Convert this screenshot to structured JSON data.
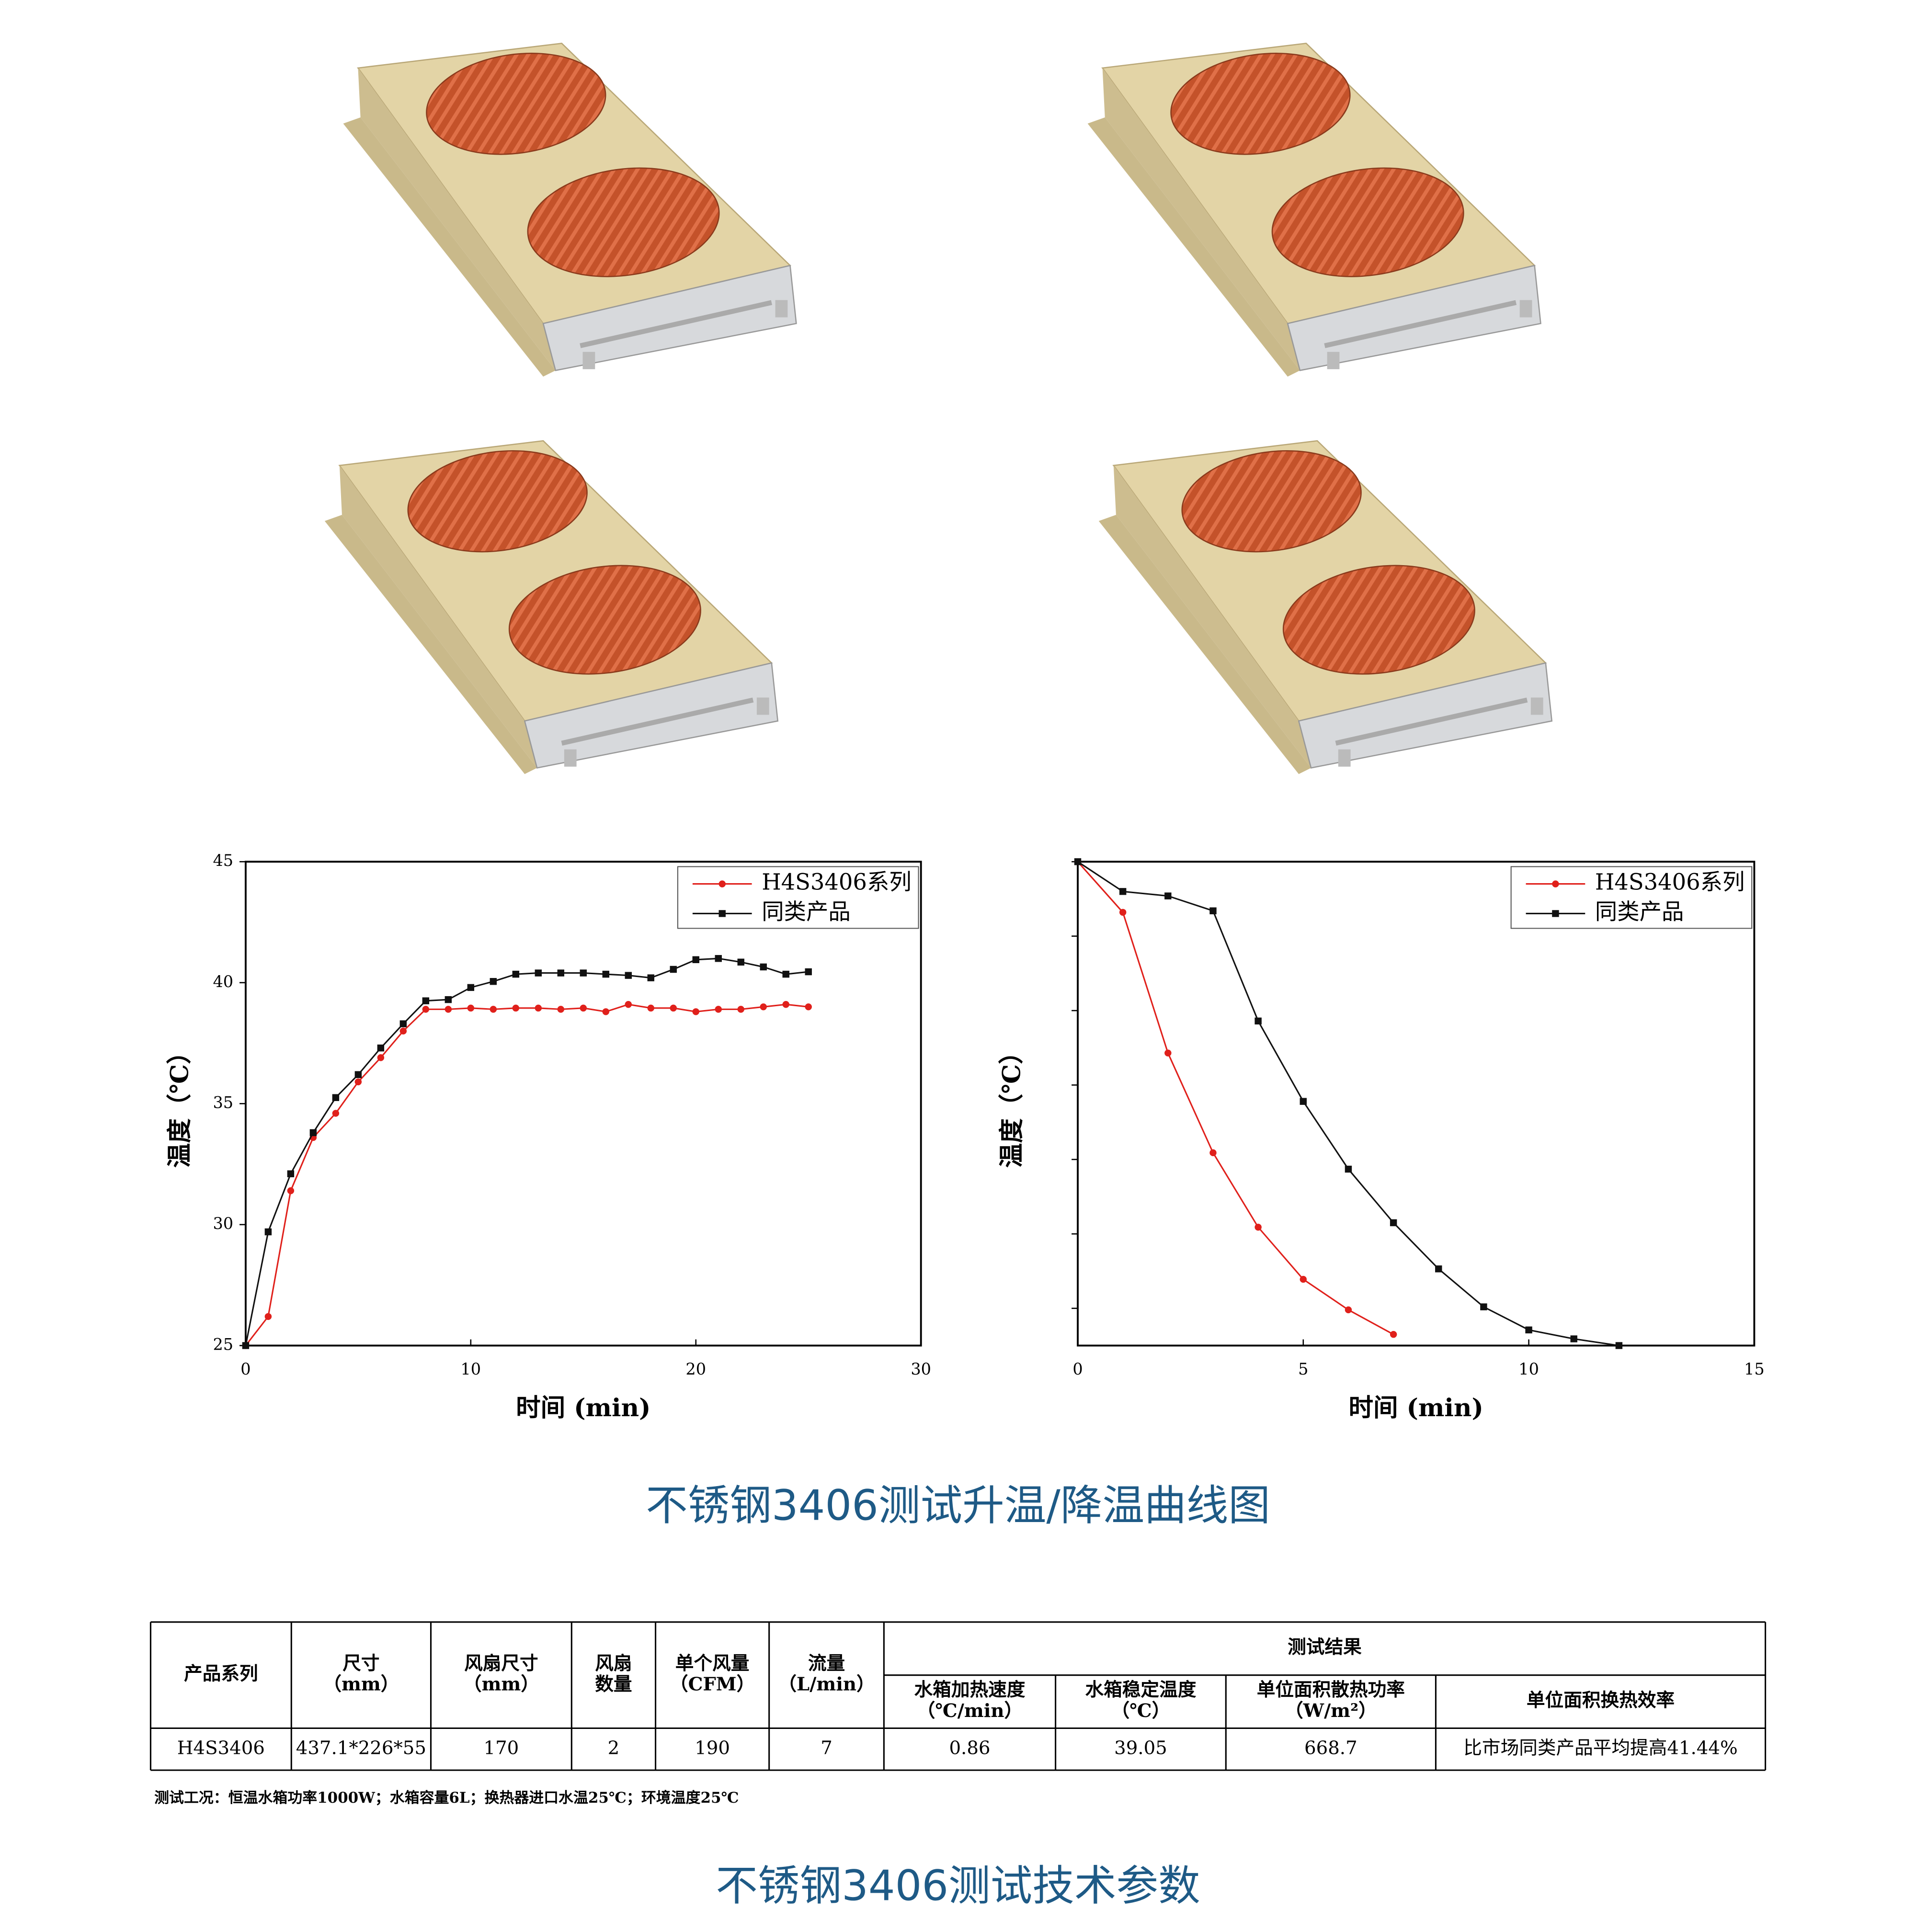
{
  "chart_data": [
    {
      "type": "line",
      "xlabel": "时间 (min)",
      "ylabel": "温度（℃）",
      "x": [
        0,
        1,
        2,
        3,
        4,
        5,
        6,
        7,
        8,
        9,
        10,
        11,
        12,
        13,
        14,
        15,
        16,
        17,
        18,
        19,
        20,
        21,
        22,
        23,
        24,
        25
      ],
      "series": [
        {
          "name": "H4S3406系列",
          "color": "#e0201b",
          "marker": "circle",
          "values": [
            25,
            26.2,
            31.4,
            33.6,
            34.6,
            35.9,
            36.9,
            38.0,
            38.9,
            38.9,
            38.95,
            38.9,
            38.95,
            38.95,
            38.9,
            38.95,
            38.8,
            39.1,
            38.95,
            38.95,
            38.8,
            38.9,
            38.9,
            39.0,
            39.1,
            39.0
          ]
        },
        {
          "name": "同类产品",
          "color": "#111111",
          "marker": "square",
          "values": [
            25,
            29.7,
            32.1,
            33.8,
            35.25,
            36.2,
            37.3,
            38.3,
            39.25,
            39.3,
            39.8,
            40.05,
            40.35,
            40.4,
            40.4,
            40.4,
            40.35,
            40.3,
            40.2,
            40.55,
            40.95,
            41.0,
            40.85,
            40.65,
            40.35,
            40.45
          ]
        }
      ],
      "xlim": [
        0,
        30
      ],
      "xticks": [
        0,
        10,
        20,
        30
      ],
      "ylim": [
        25,
        45
      ],
      "yticks": [
        25,
        30,
        35,
        40,
        45
      ],
      "show_ytick_labels": true,
      "legend": "upper right"
    },
    {
      "type": "line",
      "xlabel": "时间 (min)",
      "ylabel": "温度（℃）",
      "x": [
        0,
        1,
        2,
        3,
        4,
        5,
        6,
        7,
        8,
        9,
        10,
        11,
        12
      ],
      "series": [
        {
          "name": "H4S3406系列",
          "color": "#e0201b",
          "marker": "circle",
          "values": [
            6.0,
            5.32,
            3.43,
            2.09,
            1.09,
            0.39,
            -0.02,
            -0.35,
            null,
            null,
            null,
            null,
            null
          ]
        },
        {
          "name": "同类产品",
          "color": "#111111",
          "marker": "square",
          "values": [
            6.0,
            5.6,
            5.54,
            5.34,
            3.86,
            2.78,
            1.87,
            1.15,
            0.53,
            0.02,
            -0.29,
            -0.41,
            -0.5
          ]
        }
      ],
      "xlim": [
        0,
        15
      ],
      "xticks": [
        0,
        5,
        10,
        15
      ],
      "ylim": [
        -0.5,
        6
      ],
      "yticks": [
        0,
        1,
        2,
        3,
        4,
        5,
        6
      ],
      "show_ytick_labels": false,
      "legend": "upper right"
    }
  ],
  "caption_charts": "不锈钢3406测试升温/降温曲线图",
  "table": {
    "headers": [
      [
        "产品系列"
      ],
      [
        "尺寸",
        "（mm）"
      ],
      [
        "风扇尺寸",
        "（mm）"
      ],
      [
        "风扇",
        "数量"
      ],
      [
        "单个风量",
        "（CFM）"
      ],
      [
        "流量",
        "（L/min）"
      ]
    ],
    "group_header": "测试结果",
    "sub_headers": [
      [
        "水箱加热速度",
        "（℃/min）"
      ],
      [
        "水箱稳定温度",
        "（℃）"
      ],
      [
        "单位面积散热功率",
        "（W/m²）"
      ],
      [
        "单位面积换热效率"
      ]
    ],
    "rows": [
      [
        "H4S3406",
        "437.1*226*55",
        "170",
        "2",
        "190",
        "7",
        "0.86",
        "39.05",
        "668.7",
        "比市场同类产品平均提高41.44%"
      ]
    ]
  },
  "note": "测试工况：恒温水箱功率1000W；水箱容量6L；换热器进口水温25℃；环境温度25℃",
  "caption_table": "不锈钢3406测试技术参数"
}
